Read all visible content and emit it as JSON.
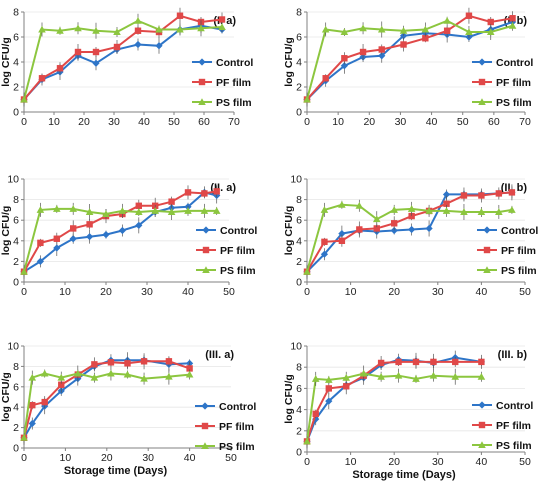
{
  "colors": {
    "control": "#2E75C8",
    "pf": "#E04848",
    "ps": "#8CC63F",
    "axis": "#808080",
    "grid": "#E6E6E6"
  },
  "legend_labels": [
    "Control",
    "PF film",
    "PS film"
  ],
  "chart_data": [
    {
      "type": "line",
      "panel_label": "(I. a)",
      "xlabel": "",
      "ylabel": "log CFU/g",
      "xlim": [
        0,
        70
      ],
      "ylim": [
        0,
        8
      ],
      "xticks": [
        0,
        10,
        20,
        30,
        40,
        50,
        60,
        70
      ],
      "yticks": [
        0,
        2,
        4,
        6,
        8
      ],
      "legend_position": "right",
      "series": [
        {
          "name": "Control",
          "marker": "diamond",
          "x": [
            0,
            6,
            12,
            18,
            24,
            31,
            38,
            45,
            52,
            59,
            66
          ],
          "y": [
            1.0,
            2.6,
            3.2,
            4.5,
            3.9,
            5.0,
            5.4,
            5.3,
            6.6,
            6.9,
            6.6
          ]
        },
        {
          "name": "PF film",
          "marker": "square",
          "x": [
            0,
            6,
            12,
            18,
            24,
            31,
            38,
            45,
            52,
            59,
            66
          ],
          "y": [
            1.0,
            2.7,
            3.5,
            4.8,
            4.8,
            5.2,
            6.5,
            6.4,
            7.7,
            7.2,
            7.4
          ]
        },
        {
          "name": "PS film",
          "marker": "triangle",
          "x": [
            0,
            6,
            12,
            18,
            24,
            31,
            38,
            45,
            52,
            59,
            66
          ],
          "y": [
            1.0,
            6.6,
            6.5,
            6.7,
            6.5,
            6.4,
            7.3,
            6.6,
            6.6,
            6.7,
            6.8
          ]
        }
      ]
    },
    {
      "type": "line",
      "panel_label": "(I. b)",
      "xlabel": "",
      "ylabel": "log CFU/g",
      "xlim": [
        0,
        70
      ],
      "ylim": [
        0,
        8
      ],
      "xticks": [
        0,
        10,
        20,
        30,
        40,
        50,
        60,
        70
      ],
      "yticks": [
        0,
        2,
        4,
        6,
        8
      ],
      "legend_position": "right",
      "series": [
        {
          "name": "Control",
          "marker": "diamond",
          "x": [
            0,
            6,
            12,
            18,
            24,
            31,
            38,
            45,
            52,
            59,
            66
          ],
          "y": [
            1.0,
            2.5,
            3.7,
            4.4,
            4.5,
            6.1,
            6.3,
            6.2,
            6.0,
            6.6,
            7.2
          ]
        },
        {
          "name": "PF film",
          "marker": "square",
          "x": [
            0,
            6,
            12,
            18,
            24,
            31,
            38,
            45,
            52,
            59,
            66
          ],
          "y": [
            1.0,
            2.7,
            4.3,
            4.8,
            5.0,
            5.4,
            5.9,
            6.5,
            7.7,
            7.2,
            7.5
          ]
        },
        {
          "name": "PS film",
          "marker": "triangle",
          "x": [
            0,
            6,
            12,
            18,
            24,
            31,
            38,
            45,
            52,
            59,
            66
          ],
          "y": [
            1.0,
            6.6,
            6.4,
            6.7,
            6.6,
            6.5,
            6.6,
            7.3,
            6.4,
            6.4,
            6.9
          ]
        }
      ]
    },
    {
      "type": "line",
      "panel_label": "(II. a)",
      "xlabel": "",
      "ylabel": "log CFU/g",
      "xlim": [
        0,
        50
      ],
      "ylim": [
        0,
        10
      ],
      "xticks": [
        0,
        10,
        20,
        30,
        40,
        50
      ],
      "yticks": [
        0,
        2,
        4,
        6,
        8,
        10
      ],
      "legend_position": "right",
      "series": [
        {
          "name": "Control",
          "marker": "diamond",
          "x": [
            0,
            4,
            8,
            12,
            16,
            20,
            24,
            28,
            32,
            36,
            40,
            44,
            47
          ],
          "y": [
            1.0,
            2.0,
            3.3,
            4.2,
            4.4,
            4.6,
            5.0,
            5.5,
            6.8,
            7.2,
            7.3,
            8.7,
            8.4
          ]
        },
        {
          "name": "PF film",
          "marker": "square",
          "x": [
            0,
            4,
            8,
            12,
            16,
            20,
            24,
            28,
            32,
            36,
            40,
            44,
            47
          ],
          "y": [
            1.0,
            3.8,
            4.2,
            5.2,
            5.6,
            6.4,
            6.6,
            7.4,
            7.4,
            7.8,
            8.7,
            8.6,
            8.8
          ]
        },
        {
          "name": "PS film",
          "marker": "triangle",
          "x": [
            0,
            4,
            8,
            12,
            16,
            20,
            24,
            28,
            32,
            36,
            40,
            44,
            47
          ],
          "y": [
            1.0,
            7.0,
            7.1,
            7.1,
            6.8,
            6.6,
            6.9,
            6.8,
            6.9,
            6.8,
            6.9,
            6.9,
            6.9
          ]
        }
      ]
    },
    {
      "type": "line",
      "panel_label": "(II. b)",
      "xlabel": "",
      "ylabel": "log CFU/g",
      "xlim": [
        0,
        50
      ],
      "ylim": [
        0,
        10
      ],
      "xticks": [
        0,
        10,
        20,
        30,
        40,
        50
      ],
      "yticks": [
        0,
        2,
        4,
        6,
        8,
        10
      ],
      "legend_position": "right",
      "series": [
        {
          "name": "Control",
          "marker": "diamond",
          "x": [
            0,
            4,
            8,
            12,
            16,
            20,
            24,
            28,
            32,
            36,
            40,
            44,
            47
          ],
          "y": [
            1.0,
            2.7,
            4.7,
            5.0,
            4.9,
            5.0,
            5.1,
            5.2,
            8.5,
            8.5,
            8.5,
            8.6,
            8.7
          ]
        },
        {
          "name": "PF film",
          "marker": "square",
          "x": [
            0,
            4,
            8,
            12,
            16,
            20,
            24,
            28,
            32,
            36,
            40,
            44,
            47
          ],
          "y": [
            1.0,
            3.9,
            4.0,
            5.1,
            5.2,
            5.7,
            6.4,
            6.9,
            7.6,
            8.4,
            8.4,
            8.6,
            8.7
          ]
        },
        {
          "name": "PS film",
          "marker": "triangle",
          "x": [
            0,
            4,
            8,
            12,
            16,
            20,
            24,
            28,
            32,
            36,
            40,
            44,
            47
          ],
          "y": [
            1.0,
            7.0,
            7.5,
            7.4,
            6.1,
            7.0,
            7.1,
            6.9,
            6.9,
            6.8,
            6.8,
            6.8,
            7.0
          ]
        }
      ]
    },
    {
      "type": "line",
      "panel_label": "(III. a)",
      "xlabel": "Storage time (Days)",
      "ylabel": "log CFU/g",
      "xlim": [
        0,
        50
      ],
      "ylim": [
        0,
        10
      ],
      "xticks": [
        0,
        10,
        20,
        30,
        40,
        50
      ],
      "yticks": [
        0,
        2,
        4,
        6,
        8,
        10
      ],
      "legend_position": "right",
      "series": [
        {
          "name": "Control",
          "marker": "diamond",
          "x": [
            0,
            2,
            5,
            9,
            13,
            17,
            21,
            25,
            29,
            35,
            40
          ],
          "y": [
            1.0,
            2.4,
            4.1,
            5.6,
            6.8,
            8.0,
            8.6,
            8.6,
            8.6,
            8.2,
            8.3
          ]
        },
        {
          "name": "PF film",
          "marker": "square",
          "x": [
            0,
            2,
            5,
            9,
            13,
            17,
            21,
            25,
            29,
            35,
            40
          ],
          "y": [
            1.0,
            4.2,
            4.5,
            6.2,
            7.2,
            8.2,
            8.4,
            8.3,
            8.5,
            8.5,
            7.8
          ]
        },
        {
          "name": "PS film",
          "marker": "triangle",
          "x": [
            0,
            2,
            5,
            9,
            13,
            17,
            21,
            25,
            29,
            35,
            40
          ],
          "y": [
            1.0,
            6.9,
            7.3,
            6.9,
            7.3,
            6.9,
            7.3,
            7.2,
            6.8,
            7.0,
            7.2
          ]
        }
      ]
    },
    {
      "type": "line",
      "panel_label": "(III. b)",
      "xlabel": "Storage time (Days)",
      "ylabel": "log CFU/g",
      "xlim": [
        0,
        50
      ],
      "ylim": [
        0,
        10
      ],
      "xticks": [
        0,
        10,
        20,
        30,
        40,
        50
      ],
      "yticks": [
        0,
        2,
        4,
        6,
        8,
        10
      ],
      "legend_position": "right",
      "series": [
        {
          "name": "Control",
          "marker": "diamond",
          "x": [
            0,
            2,
            5,
            9,
            13,
            17,
            21,
            25,
            29,
            34,
            40
          ],
          "y": [
            1.0,
            3.1,
            4.8,
            6.3,
            7.0,
            8.2,
            8.7,
            8.6,
            8.4,
            8.9,
            8.5
          ]
        },
        {
          "name": "PF film",
          "marker": "square",
          "x": [
            0,
            2,
            5,
            9,
            13,
            17,
            21,
            25,
            29,
            34,
            40
          ],
          "y": [
            1.0,
            3.6,
            6.0,
            6.2,
            7.2,
            8.4,
            8.5,
            8.5,
            8.5,
            8.5,
            8.5
          ]
        },
        {
          "name": "PS film",
          "marker": "triangle",
          "x": [
            0,
            2,
            5,
            9,
            13,
            17,
            21,
            25,
            29,
            34,
            40
          ],
          "y": [
            1.0,
            6.9,
            6.8,
            7.0,
            7.4,
            7.1,
            7.2,
            6.9,
            7.2,
            7.1,
            7.1
          ]
        }
      ]
    }
  ]
}
